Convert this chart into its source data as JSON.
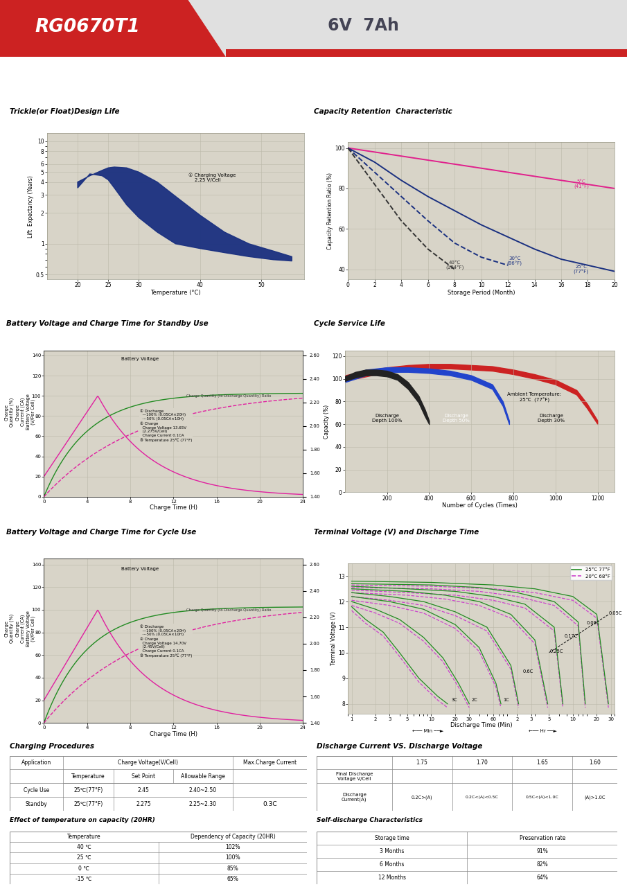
{
  "title_model": "RG0670T1",
  "title_spec": "6V  7Ah",
  "header_red": "#cc2222",
  "grid_bg": "#d8d4c8",
  "chart_bg": "#d8d4c8",
  "white_bg": "#ffffff",
  "section1_title": "Trickle(or Float)Design Life",
  "section2_title": "Capacity Retention  Characteristic",
  "section3_title": "Battery Voltage and Charge Time for Standby Use",
  "section4_title": "Cycle Service Life",
  "section5_title": "Battery Voltage and Charge Time for Cycle Use",
  "section6_title": "Terminal Voltage (V) and Discharge Time",
  "section7_title": "Charging Procedures",
  "section8_title": "Discharge Current VS. Discharge Voltage",
  "section9_title": "Effect of temperature on capacity (20HR)",
  "section10_title": "Self-discharge Characteristics",
  "cap_ret_5c_x": [
    0,
    2,
    4,
    6,
    8,
    10,
    12,
    14,
    16,
    18,
    20
  ],
  "cap_ret_5c_y": [
    100,
    98,
    96,
    94,
    92,
    90,
    88,
    86,
    84,
    82,
    80
  ],
  "cap_ret_25c_x": [
    0,
    2,
    4,
    6,
    8,
    10,
    12,
    14,
    16,
    18,
    20
  ],
  "cap_ret_25c_y": [
    100,
    93,
    84,
    76,
    69,
    62,
    56,
    50,
    45,
    42,
    39
  ],
  "cap_ret_30c_x": [
    0,
    2,
    4,
    6,
    8,
    10,
    12
  ],
  "cap_ret_30c_y": [
    100,
    88,
    76,
    64,
    53,
    46,
    42
  ],
  "cap_ret_40c_x": [
    0,
    2,
    4,
    6,
    8
  ],
  "cap_ret_40c_y": [
    100,
    82,
    64,
    50,
    40
  ]
}
